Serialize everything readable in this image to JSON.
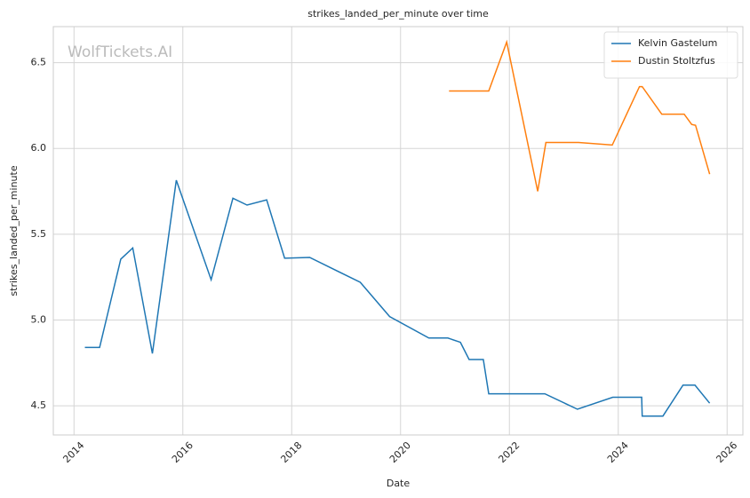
{
  "chart_data": {
    "type": "line",
    "title": "strikes_landed_per_minute over time",
    "xlabel": "Date",
    "ylabel": "strikes_landed_per_minute",
    "watermark": "WolfTickets.AI",
    "xlim": [
      2013.62,
      2026.29
    ],
    "xticks": [
      2014,
      2016,
      2018,
      2020,
      2022,
      2024,
      2026
    ],
    "ylim": [
      4.33,
      6.71
    ],
    "yticks": [
      {
        "value": 4.5,
        "label": "4.5"
      },
      {
        "value": 5.0,
        "label": "5.0"
      },
      {
        "value": 5.5,
        "label": "5.5"
      },
      {
        "value": 6.0,
        "label": "6.0"
      },
      {
        "value": 6.5,
        "label": "6.5"
      }
    ],
    "grid": true,
    "legend": "upper right",
    "series": [
      {
        "name": "Kelvin Gastelum",
        "color": "#1f77b4",
        "x": [
          2014.2,
          2014.47,
          2014.86,
          2015.08,
          2015.44,
          2015.88,
          2016.52,
          2016.92,
          2017.18,
          2017.54,
          2017.87,
          2018.33,
          2019.26,
          2019.8,
          2020.52,
          2020.87,
          2021.1,
          2021.26,
          2021.52,
          2021.62,
          2022.65,
          2023.25,
          2023.9,
          2024.43,
          2024.44,
          2024.82,
          2025.19,
          2025.41,
          2025.68
        ],
        "values": [
          4.84,
          4.84,
          5.355,
          5.42,
          4.805,
          5.815,
          5.235,
          5.71,
          5.67,
          5.7,
          5.36,
          5.365,
          5.22,
          5.02,
          4.895,
          4.895,
          4.87,
          4.77,
          4.77,
          4.57,
          4.57,
          4.48,
          4.55,
          4.55,
          4.44,
          4.44,
          4.62,
          4.62,
          4.515
        ]
      },
      {
        "name": "Dustin Stoltzfus",
        "color": "#ff7f0e",
        "x": [
          2020.89,
          2021.62,
          2021.95,
          2022.52,
          2022.67,
          2023.27,
          2023.89,
          2024.39,
          2024.44,
          2024.8,
          2025.21,
          2025.35,
          2025.42,
          2025.68
        ],
        "values": [
          6.335,
          6.335,
          6.62,
          5.75,
          6.035,
          6.035,
          6.02,
          6.36,
          6.36,
          6.2,
          6.2,
          6.14,
          6.135,
          5.85
        ]
      }
    ]
  }
}
